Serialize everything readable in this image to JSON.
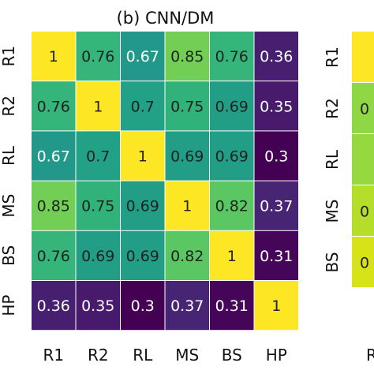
{
  "chart_data": [
    {
      "type": "heatmap",
      "title": "(b) CNN/DM",
      "rows": [
        "R1",
        "R2",
        "RL",
        "MS",
        "BS",
        "HP"
      ],
      "cols": [
        "R1",
        "R2",
        "RL",
        "MS",
        "BS",
        "HP"
      ],
      "values": [
        [
          1,
          0.76,
          0.67,
          0.85,
          0.76,
          0.36
        ],
        [
          0.76,
          1,
          0.7,
          0.75,
          0.69,
          0.35
        ],
        [
          0.67,
          0.7,
          1,
          0.69,
          0.69,
          0.3
        ],
        [
          0.85,
          0.75,
          0.69,
          1,
          0.82,
          0.37
        ],
        [
          0.76,
          0.69,
          0.69,
          0.82,
          1,
          0.31
        ],
        [
          0.36,
          0.35,
          0.3,
          0.37,
          0.31,
          1
        ]
      ],
      "cell_labels": [
        [
          "1",
          "0.76",
          "0.67",
          "0.85",
          "0.76",
          "0.36"
        ],
        [
          "0.76",
          "1",
          "0.7",
          "0.75",
          "0.69",
          "0.35"
        ],
        [
          "0.67",
          "0.7",
          "1",
          "0.69",
          "0.69",
          "0.3"
        ],
        [
          "0.85",
          "0.75",
          "0.69",
          "1",
          "0.82",
          "0.37"
        ],
        [
          "0.76",
          "0.69",
          "0.69",
          "0.82",
          "1",
          "0.31"
        ],
        [
          "0.36",
          "0.35",
          "0.3",
          "0.37",
          "0.31",
          "1"
        ]
      ],
      "colormap": "viridis",
      "value_range": [
        0.3,
        1
      ]
    },
    {
      "type": "heatmap",
      "partial": true,
      "rows": [
        "R1",
        "R2",
        "RL",
        "MS",
        "BS"
      ],
      "cols": [
        "R"
      ],
      "visible_cell_labels": [
        "",
        "0",
        "",
        "0",
        "0"
      ],
      "cell_colors": [
        "#fde725",
        "#8fd744",
        "#95d840",
        "#b5de2b",
        "#d8e219"
      ],
      "colormap": "viridis"
    }
  ]
}
